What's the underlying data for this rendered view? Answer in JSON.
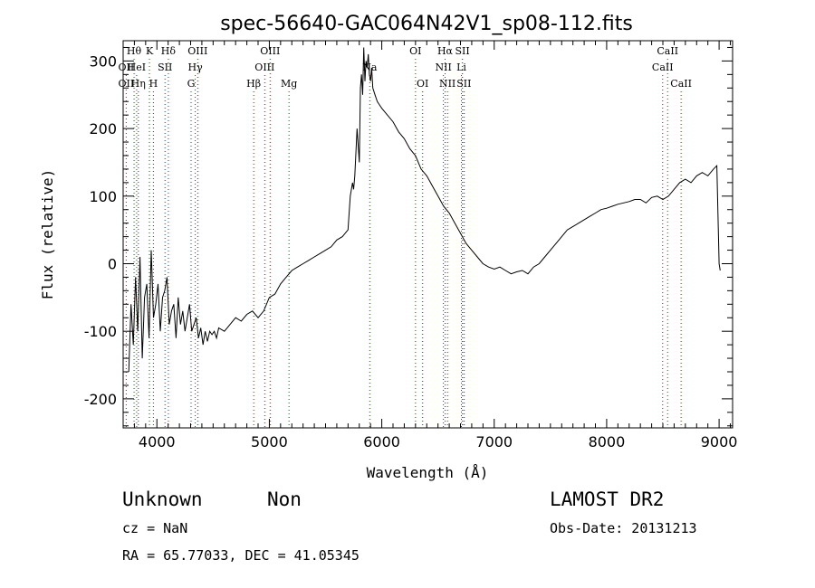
{
  "chart_data": {
    "type": "line",
    "title": "spec-56640-GAC064N42V1_sp08-112.fits",
    "xlabel": "Wavelength (Å)",
    "ylabel": "Flux (relative)",
    "xlim": [
      3700,
      9120
    ],
    "ylim": [
      -243,
      330
    ],
    "xticks": [
      4000,
      5000,
      6000,
      7000,
      8000,
      9000
    ],
    "yticks": [
      -200,
      -100,
      0,
      100,
      200,
      300
    ],
    "grid": false,
    "line_color": "#000000",
    "marker_color": "#cc0000",
    "series": [
      {
        "x": [
          3750,
          3770,
          3790,
          3810,
          3830,
          3850,
          3870,
          3890,
          3910,
          3930,
          3950,
          3970,
          3990,
          4010,
          4030,
          4050,
          4070,
          4090,
          4110,
          4130,
          4150,
          4170,
          4190,
          4210,
          4230,
          4250,
          4270,
          4290,
          4310,
          4330,
          4350,
          4370,
          4390,
          4410,
          4430,
          4450,
          4470,
          4490,
          4510,
          4530,
          4550,
          4600,
          4650,
          4700,
          4750,
          4800,
          4850,
          4900,
          4950,
          5000,
          5050,
          5100,
          5150,
          5200,
          5250,
          5300,
          5350,
          5400,
          5450,
          5500,
          5550,
          5600,
          5650,
          5700,
          5720,
          5740,
          5750,
          5760,
          5780,
          5800,
          5810,
          5820,
          5830,
          5840,
          5850,
          5860,
          5870,
          5880,
          5890,
          5900,
          5910,
          5920,
          5940,
          5960,
          5980,
          6000,
          6050,
          6100,
          6150,
          6200,
          6250,
          6300,
          6350,
          6400,
          6450,
          6500,
          6550,
          6600,
          6650,
          6700,
          6750,
          6800,
          6850,
          6900,
          6950,
          7000,
          7050,
          7100,
          7150,
          7200,
          7250,
          7300,
          7350,
          7400,
          7450,
          7500,
          7550,
          7600,
          7650,
          7700,
          7750,
          7800,
          7850,
          7900,
          7950,
          8000,
          8050,
          8100,
          8150,
          8200,
          8250,
          8300,
          8350,
          8400,
          8450,
          8500,
          8550,
          8600,
          8650,
          8700,
          8750,
          8800,
          8850,
          8900,
          8950,
          8980,
          9000,
          9010
        ],
        "y": [
          -160,
          -60,
          -120,
          -20,
          -100,
          10,
          -140,
          -50,
          -30,
          -110,
          20,
          -80,
          -60,
          -30,
          -100,
          -50,
          -40,
          -20,
          -90,
          -70,
          -60,
          -110,
          -50,
          -90,
          -70,
          -100,
          -80,
          -60,
          -100,
          -90,
          -80,
          -110,
          -95,
          -120,
          -100,
          -115,
          -100,
          -105,
          -100,
          -110,
          -95,
          -100,
          -90,
          -80,
          -85,
          -75,
          -70,
          -80,
          -70,
          -50,
          -45,
          -30,
          -20,
          -10,
          -5,
          0,
          5,
          10,
          15,
          20,
          25,
          35,
          40,
          50,
          100,
          120,
          110,
          130,
          200,
          150,
          260,
          280,
          250,
          320,
          270,
          300,
          290,
          310,
          280,
          270,
          290,
          260,
          250,
          240,
          235,
          230,
          220,
          210,
          195,
          185,
          170,
          160,
          140,
          130,
          115,
          100,
          85,
          75,
          60,
          45,
          30,
          20,
          10,
          0,
          -5,
          -8,
          -5,
          -10,
          -15,
          -12,
          -10,
          -15,
          -5,
          0,
          10,
          20,
          30,
          40,
          50,
          55,
          60,
          65,
          70,
          75,
          80,
          82,
          85,
          88,
          90,
          92,
          95,
          95,
          90,
          98,
          100,
          95,
          100,
          110,
          120,
          125,
          120,
          130,
          135,
          130,
          140,
          145,
          0,
          -10
        ]
      }
    ],
    "line_markers": [
      {
        "name": "Hθ",
        "wavelength": 3797,
        "row": 0
      },
      {
        "name": "OII",
        "wavelength": 3727,
        "row": 1
      },
      {
        "name": "HeI",
        "wavelength": 3820,
        "row": 1
      },
      {
        "name": "OII",
        "wavelength": 3727,
        "row": 2
      },
      {
        "name": "Hη",
        "wavelength": 3835,
        "row": 2
      },
      {
        "name": "K",
        "wavelength": 3934,
        "row": 0
      },
      {
        "name": "SII",
        "wavelength": 4072,
        "row": 1
      },
      {
        "name": "H",
        "wavelength": 3969,
        "row": 2
      },
      {
        "name": "Hδ",
        "wavelength": 4102,
        "row": 0
      },
      {
        "name": "OIII",
        "wavelength": 4363,
        "row": 0
      },
      {
        "name": "Hγ",
        "wavelength": 4341,
        "row": 1
      },
      {
        "name": "G",
        "wavelength": 4304,
        "row": 2
      },
      {
        "name": "OIII",
        "wavelength": 5007,
        "row": 0
      },
      {
        "name": "OIII",
        "wavelength": 4959,
        "row": 1
      },
      {
        "name": "Hβ",
        "wavelength": 4861,
        "row": 2
      },
      {
        "name": "Mg",
        "wavelength": 5175,
        "row": 2
      },
      {
        "name": "Na",
        "wavelength": 5893,
        "row": 1
      },
      {
        "name": "OI",
        "wavelength": 6300,
        "row": 0
      },
      {
        "name": "OI",
        "wavelength": 6363,
        "row": 2
      },
      {
        "name": "Hα",
        "wavelength": 6563,
        "row": 0
      },
      {
        "name": "NII",
        "wavelength": 6548,
        "row": 1
      },
      {
        "name": "NII",
        "wavelength": 6584,
        "row": 2
      },
      {
        "name": "SII",
        "wavelength": 6717,
        "row": 0
      },
      {
        "name": "Li",
        "wavelength": 6708,
        "row": 1
      },
      {
        "name": "SII",
        "wavelength": 6731,
        "row": 2
      },
      {
        "name": "CaII",
        "wavelength": 8542,
        "row": 0
      },
      {
        "name": "CaII",
        "wavelength": 8498,
        "row": 1
      },
      {
        "name": "CaII",
        "wavelength": 8662,
        "row": 2
      }
    ]
  },
  "footer": {
    "class_label": "Unknown",
    "subclass_label": "Non",
    "survey_label": "LAMOST DR2",
    "redshift": "cz = NaN",
    "obs_date": "Obs-Date: 20131213",
    "coords": "RA =  65.77033, DEC =  41.05345"
  }
}
